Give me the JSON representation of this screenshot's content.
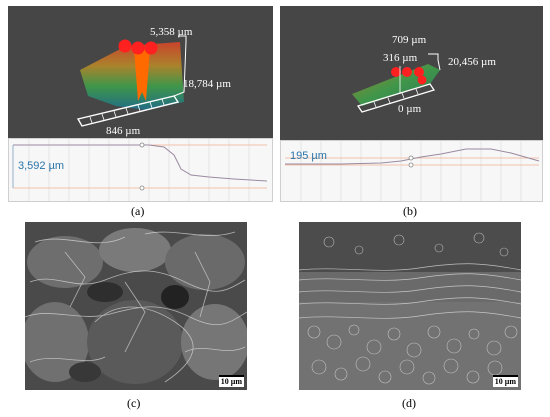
{
  "figure": {
    "panels": [
      {
        "id": "a",
        "caption": "(a)",
        "labels": {
          "top": "5,358 µm",
          "right": "18,784 µm",
          "bottom": "846 µm"
        },
        "profile_label": "3,592 µm"
      },
      {
        "id": "b",
        "caption": "(b)",
        "labels": {
          "top": "709 µm",
          "mid": "316 µm",
          "right": "20,456 µm",
          "bottom": "0 µm"
        },
        "profile_label": "195 µm"
      },
      {
        "id": "c",
        "caption": "(c)",
        "scale_bar": "10 µm"
      },
      {
        "id": "d",
        "caption": "(d)",
        "scale_bar": "10 µm"
      }
    ],
    "colors": {
      "panel_bg": "#464646",
      "marker": "#ff2020",
      "peak": "#ff6a00",
      "profile_label": "#2a74a8"
    }
  }
}
